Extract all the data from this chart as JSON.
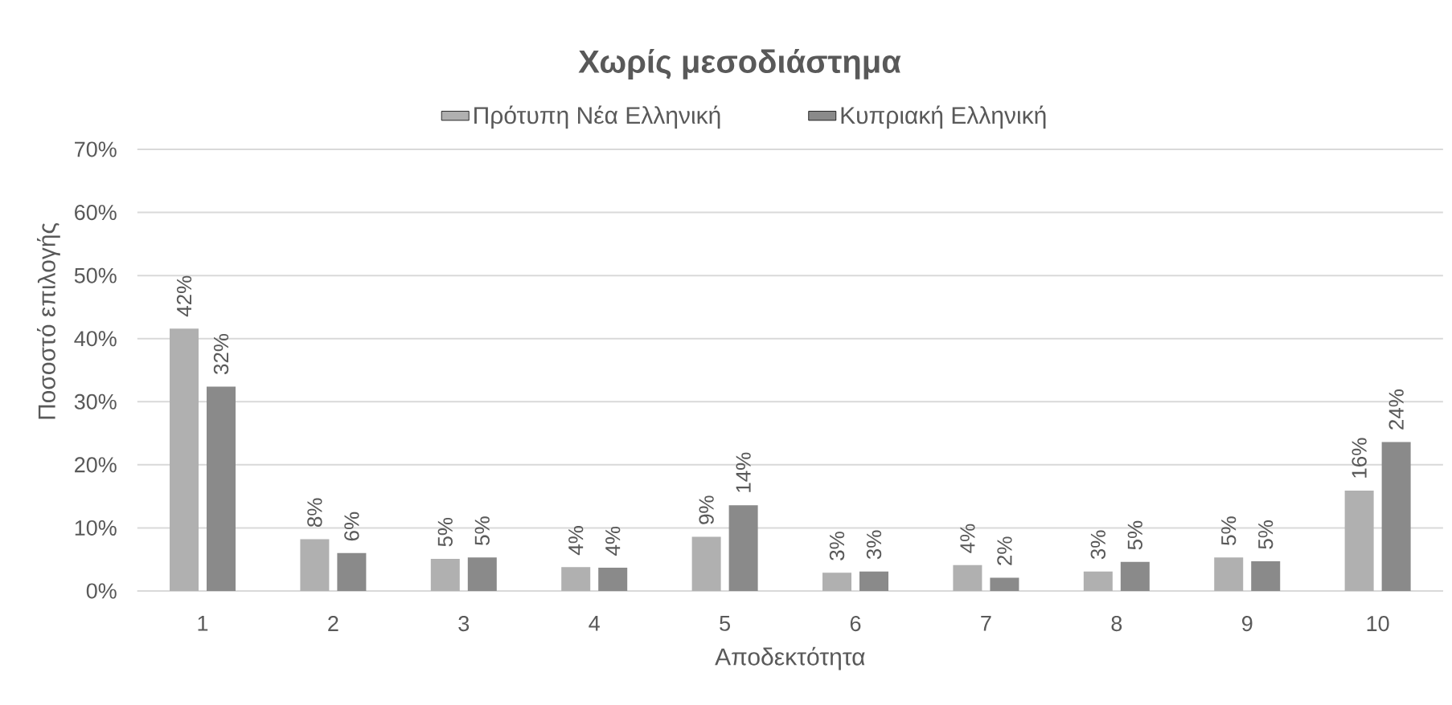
{
  "chart_data": {
    "type": "bar",
    "title": "Χωρίς μεσοδιάστημα",
    "xlabel": "Αποδεκτότητα",
    "ylabel": "Ποσοστό επιλογής",
    "categories": [
      "1",
      "2",
      "3",
      "4",
      "5",
      "6",
      "7",
      "8",
      "9",
      "10"
    ],
    "series": [
      {
        "name": "Πρότυπη Νέα Ελληνική",
        "color": "#b0b0b0",
        "values": [
          41.6,
          8.2,
          5.1,
          3.8,
          8.6,
          2.9,
          4.1,
          3.1,
          5.3,
          15.9
        ],
        "value_labels": [
          "42%",
          "8%",
          "5%",
          "4%",
          "9%",
          "3%",
          "4%",
          "3%",
          "5%",
          "16%"
        ]
      },
      {
        "name": "Κυπριακή Ελληνική",
        "color": "#8a8a8a",
        "values": [
          32.4,
          6.0,
          5.3,
          3.7,
          13.6,
          3.1,
          2.1,
          4.6,
          4.7,
          23.6
        ],
        "value_labels": [
          "32%",
          "6%",
          "5%",
          "4%",
          "14%",
          "3%",
          "2%",
          "5%",
          "5%",
          "24%"
        ]
      }
    ],
    "ylim": [
      0,
      70
    ],
    "yticks": [
      {
        "value": 0,
        "label": "0%"
      },
      {
        "value": 10,
        "label": "10%"
      },
      {
        "value": 20,
        "label": "20%"
      },
      {
        "value": 30,
        "label": "30%"
      },
      {
        "value": 40,
        "label": "40%"
      },
      {
        "value": 50,
        "label": "50%"
      },
      {
        "value": 60,
        "label": "60%"
      },
      {
        "value": 70,
        "label": "70%"
      }
    ],
    "grid": "y",
    "legend": "top"
  }
}
